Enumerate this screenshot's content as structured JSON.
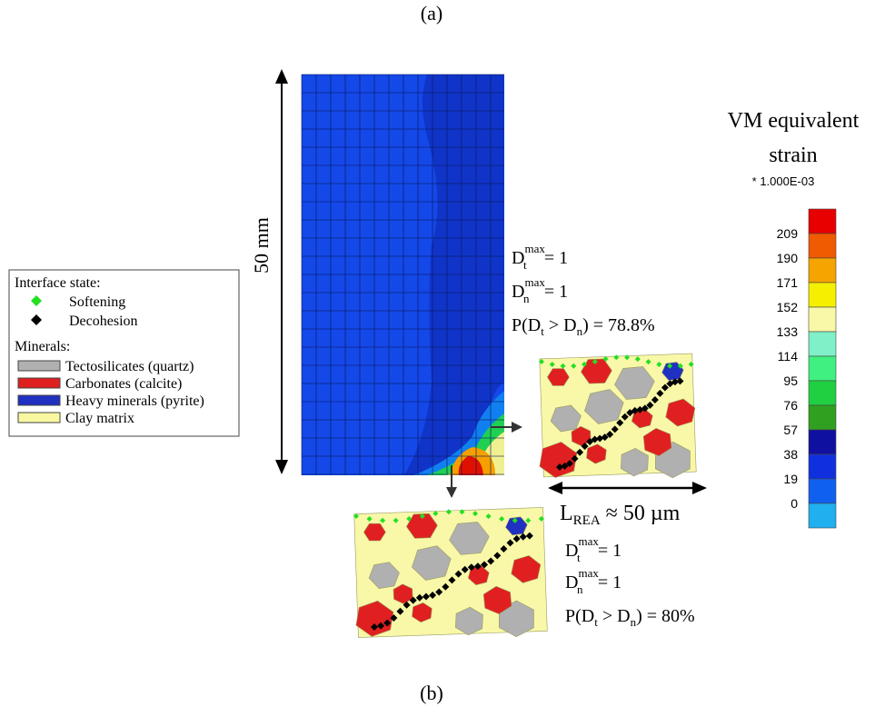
{
  "panel_a_label": "(a)",
  "panel_b_label": "(b)",
  "scale_label": "50 mm",
  "legend": {
    "interface_title": "Interface state:",
    "softening": "Softening",
    "decohesion": "Decohesion",
    "minerals_title": "Minerals:",
    "tectosilicates": "Tectosilicates (quartz)",
    "carbonates": "Carbonates (calcite)",
    "heavy": "Heavy minerals (pyrite)",
    "clay": "Clay matrix"
  },
  "colorbar": {
    "title_1": "VM equivalent",
    "title_2": "strain",
    "factor": "* 1.000E-03",
    "labels": [
      209,
      190,
      171,
      152,
      133,
      114,
      95,
      76,
      57,
      38,
      19,
      0
    ]
  },
  "upper": {
    "dt": {
      "base": "D",
      "sub": "t",
      "sup": "max",
      "rhs": "= 1"
    },
    "dn": {
      "base": "D",
      "sub": "n",
      "sup": "max",
      "rhs": "= 1"
    },
    "p": {
      "pre": "P(D",
      "sub1": "t",
      "mid": " > D",
      "sub2": "n",
      "post": ")  = 78.8%"
    }
  },
  "lower": {
    "dt": {
      "base": "D",
      "sub": "t",
      "sup": "max",
      "rhs": "= 1"
    },
    "dn": {
      "base": "D",
      "sub": "n",
      "sup": "max",
      "rhs": "= 1"
    },
    "p": {
      "pre": "P(D",
      "sub1": "t",
      "mid": " > D",
      "sub2": "n",
      "post": ")  = 80%"
    }
  },
  "rea": {
    "base": "L",
    "sub": "REA",
    "rhs": " ≈ 50 µm"
  }
}
